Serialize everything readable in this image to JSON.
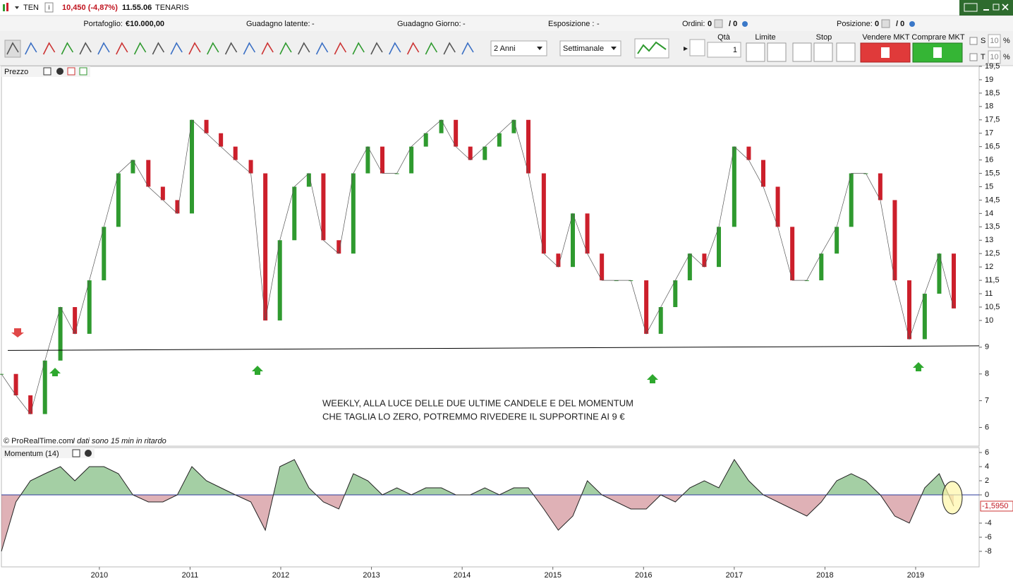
{
  "header": {
    "symbol": "TEN",
    "price_change": "10,450 (-4,87%)",
    "time": "11.55.06",
    "name": "TENARIS"
  },
  "account": {
    "portfolio_label": "Portafoglio:",
    "portfolio_value": "€10.000,00",
    "latent_label": "Guadagno latente:",
    "latent_value": "-",
    "day_label": "Guadagno Giorno:",
    "day_value": "-",
    "exposure_label": "Esposizione :",
    "exposure_value": "-",
    "orders_label": "Ordini:",
    "orders_value": "0",
    "orders_total": "/ 0",
    "position_label": "Posizione:",
    "position_value": "0",
    "position_total": "/ 0"
  },
  "toolbar": {
    "period": "2 Anni",
    "timeframe": "Settimanale"
  },
  "order_panel": {
    "qty_label": "Qtà",
    "qty_value": "1",
    "limit_label": "Limite",
    "stop_label": "Stop",
    "sell_label": "Vendere MKT",
    "buy_label": "Comprare MKT",
    "s_label": "S",
    "s_value": "10",
    "s_unit": "%",
    "t_label": "T",
    "t_value": "10",
    "t_unit": "%"
  },
  "chart_data": [
    {
      "type": "candlestick",
      "title": "Prezzo",
      "x": [
        2008.92,
        2009.08,
        2009.24,
        2009.4,
        2009.57,
        2009.73,
        2009.89,
        2010.05,
        2010.21,
        2010.37,
        2010.54,
        2010.7,
        2010.86,
        2011.02,
        2011.18,
        2011.34,
        2011.5,
        2011.67,
        2011.83,
        2011.99,
        2012.15,
        2012.31,
        2012.47,
        2012.64,
        2012.8,
        2012.96,
        2013.12,
        2013.28,
        2013.44,
        2013.6,
        2013.77,
        2013.93,
        2014.09,
        2014.25,
        2014.41,
        2014.57,
        2014.73,
        2014.9,
        2015.06,
        2015.22,
        2015.38,
        2015.54,
        2015.7,
        2015.86,
        2016.03,
        2016.19,
        2016.35,
        2016.51,
        2016.67,
        2016.83,
        2017.0,
        2017.16,
        2017.32,
        2017.48,
        2017.64,
        2017.8,
        2017.96,
        2018.13,
        2018.29,
        2018.45,
        2018.61,
        2018.77,
        2018.93,
        2019.1,
        2019.26,
        2019.42
      ],
      "values": [
        8.0,
        7.2,
        6.5,
        8.5,
        10.5,
        9.5,
        11.5,
        13.5,
        15.5,
        16,
        15,
        14.5,
        14,
        17.5,
        17,
        16.5,
        16,
        15.5,
        10,
        13,
        15,
        15.5,
        13,
        12.5,
        15.5,
        16.5,
        15.5,
        15.5,
        16.5,
        17,
        17.5,
        16.5,
        16,
        16.5,
        17,
        17.5,
        15.5,
        12.5,
        12,
        14,
        12.5,
        11.5,
        11.5,
        11.5,
        9.5,
        10.5,
        11.5,
        12.5,
        12,
        13.5,
        16.5,
        16,
        15,
        13.5,
        11.5,
        11.5,
        12.5,
        13.5,
        15.5,
        15.5,
        14.5,
        11.5,
        9.3,
        11,
        12.5,
        10.45
      ],
      "xlim": [
        2008.92,
        2019.7
      ],
      "ylim": [
        5.3,
        19.5
      ],
      "yticks": [
        {
          "value": 19.5,
          "label": "19,5"
        },
        19,
        {
          "value": 18.5,
          "label": "18,5"
        },
        18,
        {
          "value": 17.5,
          "label": "17,5"
        },
        17,
        {
          "value": 16.5,
          "label": "16,5"
        },
        16,
        {
          "value": 15.5,
          "label": "15,5"
        },
        15,
        {
          "value": 14.5,
          "label": "14,5"
        },
        14,
        {
          "value": 13.5,
          "label": "13,5"
        },
        13,
        {
          "value": 12.5,
          "label": "12,5"
        },
        12,
        {
          "value": 11.5,
          "label": "11,5"
        },
        11,
        {
          "value": 10.5,
          "label": "10,5"
        },
        10,
        9,
        8,
        7,
        6
      ],
      "up_color": "#2f9a2f",
      "down_color": "#cc1f2b",
      "support_line": {
        "x": [
          2008.99,
          2019.7
        ],
        "y": [
          8.88,
          9.05
        ]
      },
      "annotation": [
        "WEEKLY, ALLA LUCE DELLE DUE ULTIME CANDELE E DEL MOMENTUM",
        "CHE TAGLIA LO ZERO, POTREMMO RIVEDERE IL SUPPORTINE AI 9 €"
      ],
      "credit": "© ProRealTime.com",
      "delay_note": "I dati sono 15 min in ritardo"
    },
    {
      "type": "area",
      "title": "Momentum (14)",
      "x": [
        2008.92,
        2009.08,
        2009.24,
        2009.4,
        2009.57,
        2009.73,
        2009.89,
        2010.05,
        2010.21,
        2010.37,
        2010.54,
        2010.7,
        2010.86,
        2011.02,
        2011.18,
        2011.34,
        2011.5,
        2011.67,
        2011.83,
        2011.99,
        2012.15,
        2012.31,
        2012.47,
        2012.64,
        2012.8,
        2012.96,
        2013.12,
        2013.28,
        2013.44,
        2013.6,
        2013.77,
        2013.93,
        2014.09,
        2014.25,
        2014.41,
        2014.57,
        2014.73,
        2014.9,
        2015.06,
        2015.22,
        2015.38,
        2015.54,
        2015.7,
        2015.86,
        2016.03,
        2016.19,
        2016.35,
        2016.51,
        2016.67,
        2016.83,
        2017.0,
        2017.16,
        2017.32,
        2017.48,
        2017.64,
        2017.8,
        2017.96,
        2018.13,
        2018.29,
        2018.45,
        2018.61,
        2018.77,
        2018.93,
        2019.1,
        2019.26,
        2019.42
      ],
      "values": [
        -8,
        -1,
        2,
        3,
        4,
        2,
        4,
        4,
        3,
        0,
        -1,
        -1,
        0,
        4,
        2,
        1,
        0,
        -1,
        -5,
        4,
        5,
        1,
        -1,
        -2,
        3,
        2,
        0,
        1,
        0,
        1,
        1,
        0,
        0,
        1,
        0,
        1,
        1,
        -2,
        -5,
        -3,
        2,
        0,
        -1,
        -2,
        -2,
        0,
        -1,
        1,
        2,
        1,
        5,
        2,
        0,
        -1,
        -2,
        -3,
        -1,
        2,
        3,
        2,
        0,
        -3,
        -4,
        1,
        3,
        -1.595
      ],
      "last_value_label": "-1,5950",
      "xlim": [
        2008.92,
        2019.7
      ],
      "ylim": [
        -10.2,
        6.7
      ],
      "yticks": [
        6,
        4,
        2,
        0,
        -4,
        -6,
        -8
      ],
      "xticks": [
        2010,
        2011,
        2012,
        2013,
        2014,
        2015,
        2016,
        2017,
        2018,
        2019
      ],
      "positive_color": "#5aa75a",
      "negative_color": "#c0646e",
      "zero_color": "#2b3a9b"
    }
  ]
}
